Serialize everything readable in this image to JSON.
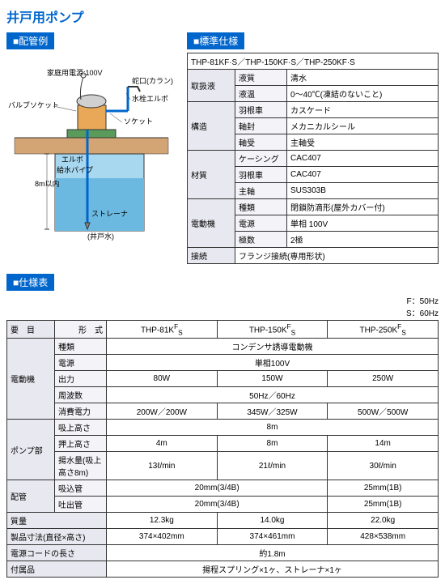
{
  "page_title": "井戸用ポンプ",
  "sections": {
    "diagram": {
      "header": "配管例",
      "labels": {
        "power": "家庭用電源:100V",
        "faucet": "蛇口(カラン)",
        "valve": "バルブソケット",
        "elbow_water": "水栓エルボ",
        "socket": "ソケット",
        "elbow": "エルボ",
        "pipe": "給水パイプ",
        "depth": "8m以内",
        "strainer": "ストレーナ",
        "well": "(井戸水)"
      }
    },
    "standard_spec": {
      "header": "標準仕様",
      "models": "THP-81KF·S／THP-150KF·S／THP-250KF·S",
      "rows": [
        {
          "cat": "取扱液",
          "sub": "液質",
          "val": "清水"
        },
        {
          "cat": "",
          "sub": "液温",
          "val": "0～40℃(凍結のないこと)"
        },
        {
          "cat": "構造",
          "sub": "羽根車",
          "val": "カスケード"
        },
        {
          "cat": "",
          "sub": "軸封",
          "val": "メカニカルシール"
        },
        {
          "cat": "",
          "sub": "軸受",
          "val": "主軸受"
        },
        {
          "cat": "材質",
          "sub": "ケーシング",
          "val": "CAC407"
        },
        {
          "cat": "",
          "sub": "羽根車",
          "val": "CAC407"
        },
        {
          "cat": "",
          "sub": "主軸",
          "val": "SUS303B"
        },
        {
          "cat": "電動機",
          "sub": "種類",
          "val": "閉鎖防滴形(屋外カバー付)"
        },
        {
          "cat": "",
          "sub": "電源",
          "val": "単相 100V"
        },
        {
          "cat": "",
          "sub": "極数",
          "val": "2極"
        },
        {
          "cat": "接続",
          "sub": "",
          "val": "フランジ接続(専用形状)"
        }
      ]
    },
    "spec_table": {
      "header": "仕様表",
      "freq_note_f": "F：50Hz",
      "freq_note_s": "S：60Hz",
      "col_item": "要　目",
      "col_model": "形　式",
      "models": [
        "THP-81K",
        "THP-150K",
        "THP-250K"
      ],
      "model_suffix": "F\nS",
      "rows": [
        {
          "cat": "電動機",
          "sub": "種類",
          "vals": [
            "コンデンサ誘導電動機"
          ],
          "span": 3
        },
        {
          "cat": "",
          "sub": "電源",
          "vals": [
            "単相100V"
          ],
          "span": 3
        },
        {
          "cat": "",
          "sub": "出力",
          "vals": [
            "80W",
            "150W",
            "250W"
          ]
        },
        {
          "cat": "",
          "sub": "周波数",
          "vals": [
            "50Hz／60Hz"
          ],
          "span": 3
        },
        {
          "cat": "",
          "sub": "消費電力",
          "vals": [
            "200W／200W",
            "345W／325W",
            "500W／500W"
          ]
        },
        {
          "cat": "ポンプ部",
          "sub": "吸上高さ",
          "vals": [
            "8m"
          ],
          "span": 3
        },
        {
          "cat": "",
          "sub": "押上高さ",
          "vals": [
            "4m",
            "8m",
            "14m"
          ]
        },
        {
          "cat": "",
          "sub": "揚水量(吸上高さ8m)",
          "vals": [
            "13ℓ/min",
            "21ℓ/min",
            "30ℓ/min"
          ]
        },
        {
          "cat": "配管",
          "sub": "吸込管",
          "vals": [
            "20mm(3/4B)",
            "",
            "25mm(1B)"
          ],
          "span2": true
        },
        {
          "cat": "",
          "sub": "吐出管",
          "vals": [
            "20mm(3/4B)",
            "",
            "25mm(1B)"
          ],
          "span2": true
        },
        {
          "cat": "質量",
          "sub": "",
          "vals": [
            "12.3kg",
            "14.0kg",
            "22.0kg"
          ]
        },
        {
          "cat": "製品寸法(直径×高さ)",
          "sub": "",
          "vals": [
            "374×402mm",
            "374×461mm",
            "428×538mm"
          ]
        },
        {
          "cat": "電源コードの長さ",
          "sub": "",
          "vals": [
            "約1.8m"
          ],
          "span": 3
        },
        {
          "cat": "付属品",
          "sub": "",
          "vals": [
            "揚程スプリング×1ヶ、ストレーナ×1ヶ"
          ],
          "span": 3
        }
      ]
    }
  }
}
